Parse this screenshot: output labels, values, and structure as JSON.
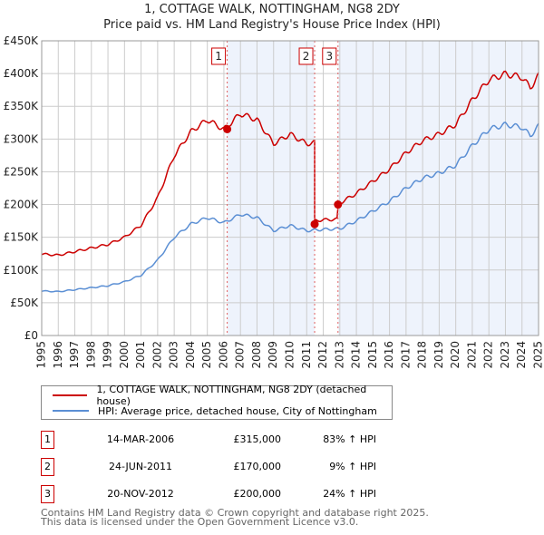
{
  "chart_data": {
    "type": "line",
    "title": "1, COTTAGE WALK, NOTTINGHAM, NG8 2DY",
    "subtitle": "Price paid vs. HM Land Registry's House Price Index (HPI)",
    "xlim": [
      1995,
      2025
    ],
    "ylim": [
      0,
      450000
    ],
    "xticks": [
      "1995",
      "1996",
      "1997",
      "1998",
      "1999",
      "2000",
      "2001",
      "2002",
      "2003",
      "2004",
      "2005",
      "2006",
      "2007",
      "2008",
      "2009",
      "2010",
      "2011",
      "2012",
      "2013",
      "2014",
      "2015",
      "2016",
      "2017",
      "2018",
      "2019",
      "2020",
      "2021",
      "2022",
      "2023",
      "2024",
      "2025"
    ],
    "yticks": [
      {
        "v": 0,
        "l": "£0"
      },
      {
        "v": 50000,
        "l": "£50K"
      },
      {
        "v": 100000,
        "l": "£100K"
      },
      {
        "v": 150000,
        "l": "£150K"
      },
      {
        "v": 200000,
        "l": "£200K"
      },
      {
        "v": 250000,
        "l": "£250K"
      },
      {
        "v": 300000,
        "l": "£300K"
      },
      {
        "v": 350000,
        "l": "£350K"
      },
      {
        "v": 400000,
        "l": "£400K"
      },
      {
        "v": 450000,
        "l": "£450K"
      }
    ],
    "hpi": {
      "x": [
        1995,
        1996,
        1997,
        1998,
        1999,
        2000,
        2001,
        2002,
        2003,
        2004,
        2005,
        2006,
        2007,
        2008,
        2009,
        2010,
        2011,
        2012,
        2013,
        2014,
        2015,
        2016,
        2017,
        2018,
        2019,
        2020,
        2021,
        2022,
        2023,
        2024,
        2024.5,
        2025
      ],
      "y": [
        68000,
        67000,
        70000,
        73000,
        76000,
        82000,
        92000,
        115000,
        150000,
        170000,
        180000,
        172000,
        185000,
        180000,
        160000,
        168000,
        160000,
        162000,
        163000,
        175000,
        190000,
        205000,
        225000,
        240000,
        248000,
        260000,
        290000,
        315000,
        322000,
        318000,
        305000,
        320000
      ]
    },
    "series": [
      {
        "name": "1, COTTAGE WALK, NOTTINGHAM, NG8 2DY (detached house)",
        "color": "#cc0000"
      },
      {
        "name": "HPI: Average price, detached house, City of Nottingham",
        "color": "#5b8fd4"
      }
    ],
    "sales": [
      {
        "n": "1",
        "date": "14-MAR-2006",
        "t": 2006.2,
        "price": "£315,000",
        "pv": 315000,
        "hpi": "83% ↑ HPI",
        "ratio": 1.83
      },
      {
        "n": "2",
        "date": "24-JUN-2011",
        "t": 2011.48,
        "price": "£170,000",
        "pv": 170000,
        "hpi": "9% ↑ HPI",
        "ratio": 1.09
      },
      {
        "n": "3",
        "date": "20-NOV-2012",
        "t": 2012.89,
        "price": "£200,000",
        "pv": 200000,
        "hpi": "24% ↑ HPI",
        "ratio": 1.24
      }
    ]
  },
  "footer": {
    "line1": "Contains HM Land Registry data © Crown copyright and database right 2025.",
    "line2": "This data is licensed under the Open Government Licence v3.0."
  }
}
